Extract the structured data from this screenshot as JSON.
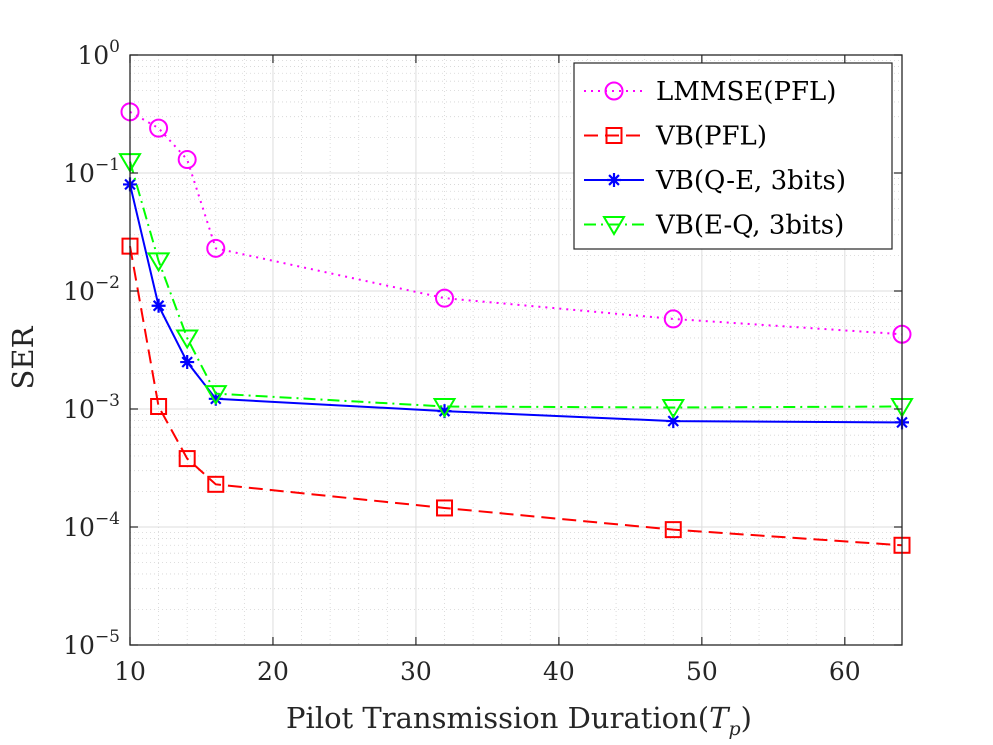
{
  "chart_data": {
    "type": "line",
    "xlabel": "Pilot Transmission Duration(",
    "xlabel_symbol": "T",
    "xlabel_subscript": "p",
    "xlabel_close": ")",
    "ylabel": "SER",
    "x_scale": "linear",
    "y_scale": "log",
    "xlim": [
      10,
      64
    ],
    "ylim": [
      1e-05,
      1
    ],
    "xticks": [
      10,
      20,
      30,
      40,
      50,
      60
    ],
    "xtick_labels": [
      "10",
      "20",
      "30",
      "40",
      "50",
      "60"
    ],
    "yticks": [
      1e-05,
      0.0001,
      0.001,
      0.01,
      0.1,
      1
    ],
    "ytick_labels": [
      {
        "base": "10",
        "exp": "−5"
      },
      {
        "base": "10",
        "exp": "−4"
      },
      {
        "base": "10",
        "exp": "−3"
      },
      {
        "base": "10",
        "exp": "−2"
      },
      {
        "base": "10",
        "exp": "−1"
      },
      {
        "base": "10",
        "exp": "0"
      }
    ],
    "grid": true,
    "minor_grid": true,
    "legend_position": "top-right",
    "x": [
      10,
      12,
      14,
      16,
      32,
      48,
      64
    ],
    "series": [
      {
        "name": "LMMSE(PFL)",
        "color": "#ff00ff",
        "marker": "circle",
        "linestyle": "dotted",
        "values": [
          0.33,
          0.24,
          0.13,
          0.023,
          0.0087,
          0.0058,
          0.0043
        ]
      },
      {
        "name": "VB(PFL)",
        "color": "#ff0000",
        "marker": "square",
        "linestyle": "dashed",
        "values": [
          0.024,
          0.00105,
          0.00038,
          0.00023,
          0.000145,
          9.5e-05,
          7e-05
        ]
      },
      {
        "name": "VB(Q-E, 3bits)",
        "color": "#0000ff",
        "marker": "asterisk",
        "linestyle": "solid",
        "values": [
          0.08,
          0.0075,
          0.0025,
          0.00122,
          0.00096,
          0.00079,
          0.00077
        ]
      },
      {
        "name": "VB(E-Q, 3bits)",
        "color": "#00ff00",
        "marker": "triangle-down",
        "linestyle": "dashdot",
        "values": [
          0.125,
          0.018,
          0.004,
          0.00135,
          0.00105,
          0.00103,
          0.00105
        ]
      }
    ]
  }
}
